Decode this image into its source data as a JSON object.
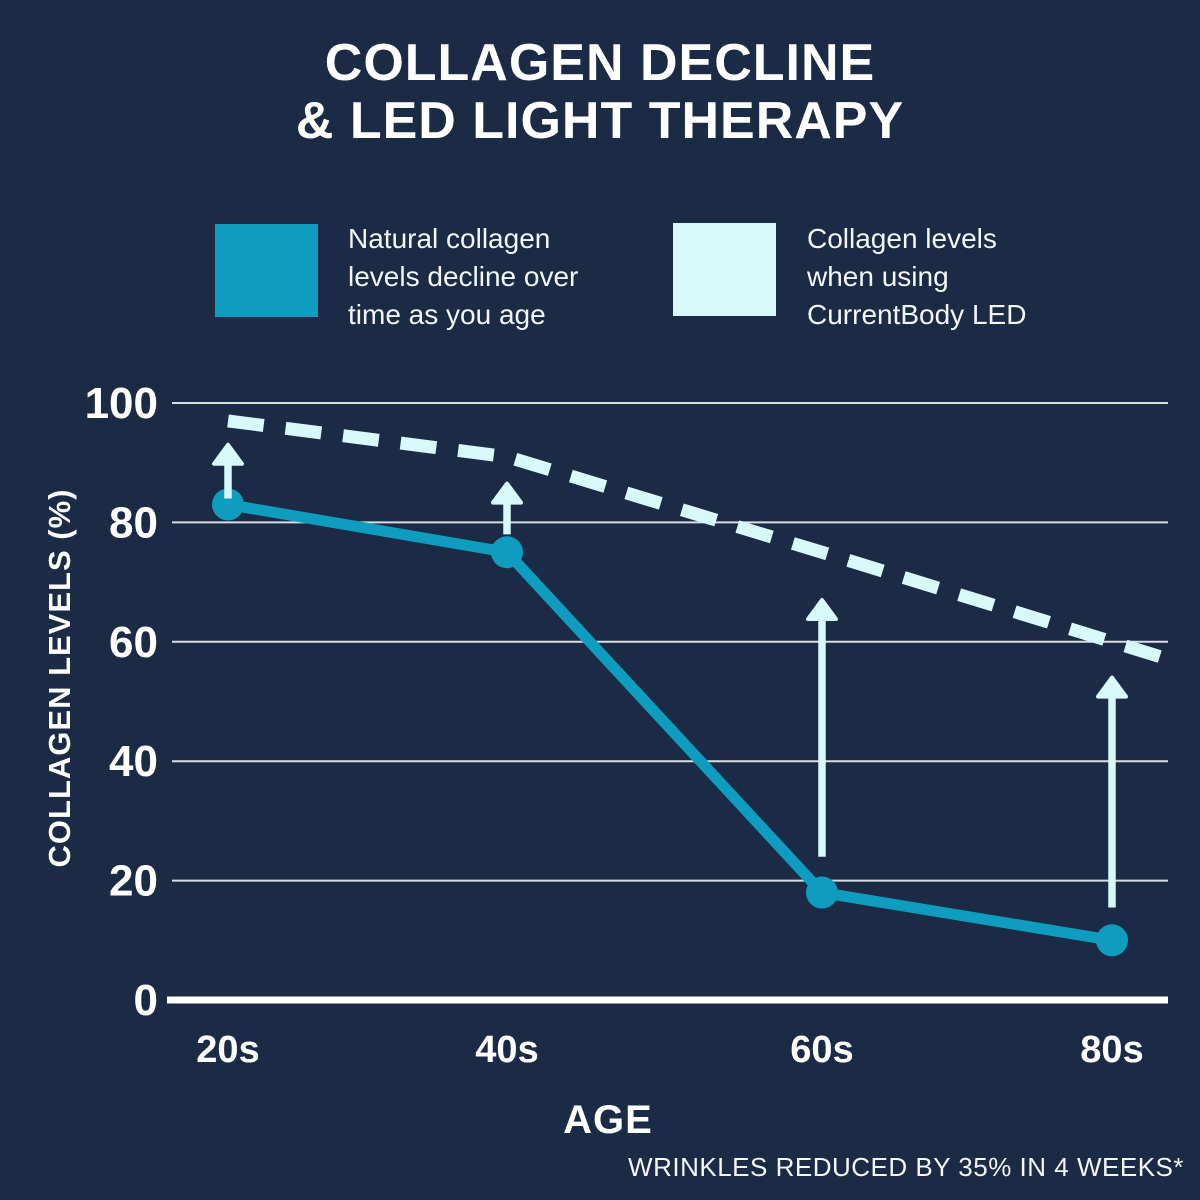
{
  "title": {
    "line1": "COLLAGEN DECLINE",
    "line2": "& LED LIGHT THERAPY"
  },
  "legend": {
    "items": [
      {
        "label": "Natural collagen\nlevels decline over\ntime as you age",
        "color": "#0E9DBF"
      },
      {
        "label": "Collagen levels\nwhen using\nCurrentBody LED",
        "color": "#D8F8FA"
      }
    ]
  },
  "footer": {
    "disclaimer": "WRINKLES REDUCED BY 35% IN 4 WEEKS*"
  },
  "chart_data": {
    "type": "line",
    "title": "COLLAGEN DECLINE & LED LIGHT THERAPY",
    "categories": [
      "20s",
      "40s",
      "60s",
      "80s"
    ],
    "series": [
      {
        "name": "Natural collagen levels decline over time as you age",
        "values": [
          83,
          75,
          18,
          10
        ],
        "color": "#0E9DBF",
        "style": "solid",
        "markers": true
      },
      {
        "name": "Collagen levels when using CurrentBody LED",
        "values": [
          97,
          91,
          75,
          60
        ],
        "color": "#D8F8FA",
        "style": "dashed",
        "markers": false
      }
    ],
    "xlabel": "AGE",
    "ylabel": "COLLAGEN LEVELS (%)",
    "ylim": [
      0,
      100
    ],
    "yticks": [
      0,
      20,
      40,
      60,
      80,
      100
    ],
    "grid": true,
    "legend_position": "top",
    "annotations": {
      "up_arrows": [
        {
          "category": "20s",
          "from": 84,
          "to": 93
        },
        {
          "category": "40s",
          "from": 78,
          "to": 86.5
        },
        {
          "category": "60s",
          "from": 24,
          "to": 67
        },
        {
          "category": "80s",
          "from": 15.5,
          "to": 54
        }
      ]
    },
    "colors": {
      "background": "#1B2A45",
      "gridline": "#EDF2F7",
      "axis": "#FFFFFF"
    }
  }
}
